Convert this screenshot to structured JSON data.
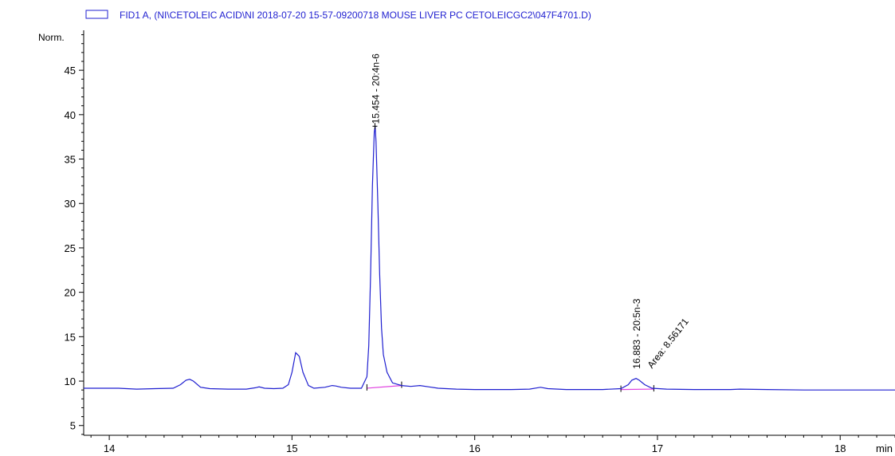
{
  "chart_data": {
    "type": "line",
    "legend": {
      "label": "FID1 A, (NI\\CETOLEIC ACID\\NI 2018-07-20 15-57-09200718 MOUSE LIVER PC CETOLEICGC2\\047F4701.D)",
      "placement": "top-left",
      "color": "#1f1fd0"
    },
    "ylabel": "Norm.",
    "xlabel": "min",
    "xlim": [
      13.86,
      18.3
    ],
    "ylim": [
      3.9,
      49.5
    ],
    "x_ticks": [
      14,
      15,
      16,
      17,
      18
    ],
    "y_ticks": [
      5,
      10,
      15,
      20,
      25,
      30,
      35,
      40,
      45
    ],
    "grid": false,
    "line_color": "#1f1fd0",
    "baseline_color": "#e040e0",
    "series": [
      {
        "values_description": "chromatogram signal",
        "x": [
          13.86,
          13.95,
          14.05,
          14.15,
          14.25,
          14.35,
          14.39,
          14.42,
          14.44,
          14.46,
          14.5,
          14.55,
          14.65,
          14.75,
          14.8,
          14.82,
          14.85,
          14.9,
          14.95,
          14.98,
          15.0,
          15.02,
          15.04,
          15.06,
          15.09,
          15.12,
          15.18,
          15.22,
          15.24,
          15.27,
          15.32,
          15.38,
          15.41,
          15.42,
          15.43,
          15.44,
          15.45,
          15.455,
          15.46,
          15.47,
          15.48,
          15.49,
          15.5,
          15.52,
          15.55,
          15.6,
          15.65,
          15.7,
          15.75,
          15.8,
          15.9,
          16.0,
          16.1,
          16.2,
          16.3,
          16.36,
          16.4,
          16.5,
          16.6,
          16.7,
          16.8,
          16.84,
          16.86,
          16.883,
          16.9,
          16.93,
          16.97,
          17.05,
          17.2,
          17.4,
          17.45,
          17.6,
          17.8,
          18.0,
          18.2,
          18.3
        ],
        "y": [
          9.2,
          9.2,
          9.2,
          9.1,
          9.15,
          9.2,
          9.6,
          10.1,
          10.2,
          10.0,
          9.3,
          9.15,
          9.1,
          9.1,
          9.25,
          9.35,
          9.2,
          9.15,
          9.2,
          9.6,
          11.0,
          13.2,
          12.8,
          11.0,
          9.5,
          9.2,
          9.3,
          9.5,
          9.45,
          9.3,
          9.2,
          9.2,
          10.5,
          14.0,
          22.0,
          32.0,
          38.0,
          38.7,
          37.0,
          30.0,
          22.0,
          16.0,
          13.0,
          11.0,
          9.8,
          9.5,
          9.4,
          9.5,
          9.35,
          9.2,
          9.1,
          9.05,
          9.05,
          9.05,
          9.1,
          9.3,
          9.15,
          9.05,
          9.05,
          9.05,
          9.15,
          9.6,
          10.1,
          10.3,
          10.1,
          9.6,
          9.2,
          9.1,
          9.05,
          9.05,
          9.1,
          9.05,
          9.0,
          9.0,
          9.0,
          9.0
        ]
      }
    ],
    "annotations": [
      {
        "text": "15.454 - 20:4n-6",
        "x": 15.454,
        "y": 38.7
      },
      {
        "text": "16.883 - 20:5n-3",
        "x": 16.883,
        "y": 10.3
      },
      {
        "text": "Area: 8.56171",
        "x": 16.883,
        "y": 10.3
      }
    ]
  }
}
